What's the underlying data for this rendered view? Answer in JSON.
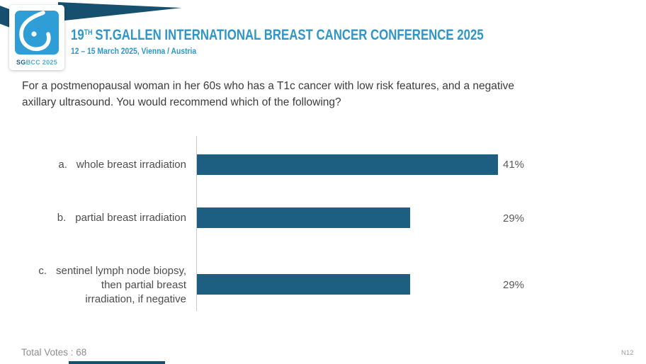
{
  "header": {
    "logo": {
      "caption_bold": "SG",
      "caption_rest": "BCC 2025",
      "square_color": "#2f9ed6",
      "ribbon_color": "#17506e"
    },
    "title_prefix": "19",
    "title_sup": "TH",
    "title_rest": "ST.GALLEN INTERNATIONAL BREAST CANCER CONFERENCE 2025",
    "subtitle": "12 – 15 March 2025, Vienna / Austria",
    "title_color": "#2e96c8"
  },
  "question": {
    "line1": "For a postmenopausal woman in her 60s who has a T1c cancer with low risk features, and a negative",
    "line2": "axillary ultrasound. You would recommend which of the following?"
  },
  "chart_data": {
    "type": "bar",
    "orientation": "horizontal",
    "title": "",
    "categories": [
      "a. whole breast irradiation",
      "b. partial breast irradiation",
      "c. sentinel lymph node biopsy, then partial breast irradiation, if negative"
    ],
    "values": [
      41,
      29,
      29
    ],
    "value_labels": [
      "41%",
      "29%",
      "29%"
    ],
    "unit": "percent of votes",
    "xlim": [
      0,
      45
    ],
    "grid": false,
    "legend": false,
    "bar_color": "#1d5f80"
  },
  "options": [
    {
      "letter": "a.",
      "lines": [
        "whole breast irradiation"
      ],
      "percent": "41%"
    },
    {
      "letter": "b.",
      "lines": [
        "partial breast irradiation"
      ],
      "percent": "29%"
    },
    {
      "letter": "c.",
      "lines": [
        "sentinel lymph node biopsy,",
        "then partial breast",
        "irradiation, if negative"
      ],
      "percent": "29%"
    }
  ],
  "footer": {
    "total_votes": "Total Votes : 68",
    "slide_code": "N12"
  }
}
